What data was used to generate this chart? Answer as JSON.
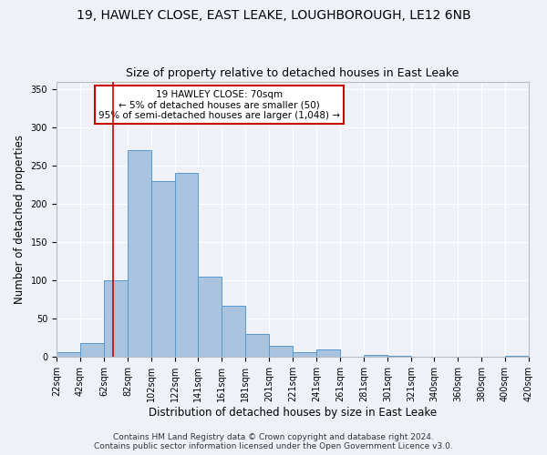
{
  "title1": "19, HAWLEY CLOSE, EAST LEAKE, LOUGHBOROUGH, LE12 6NB",
  "title2": "Size of property relative to detached houses in East Leake",
  "xlabel": "Distribution of detached houses by size in East Leake",
  "ylabel": "Number of detached properties",
  "footer1": "Contains HM Land Registry data © Crown copyright and database right 2024.",
  "footer2": "Contains public sector information licensed under the Open Government Licence v3.0.",
  "annotation_line1": "19 HAWLEY CLOSE: 70sqm",
  "annotation_line2": "← 5% of detached houses are smaller (50)",
  "annotation_line3": "95% of semi-detached houses are larger (1,048) →",
  "bar_left_edges": [
    22,
    42,
    62,
    82,
    102,
    122,
    141,
    161,
    181,
    201,
    221,
    241,
    261,
    281,
    301,
    321,
    340,
    360,
    380,
    400
  ],
  "bar_widths": [
    20,
    20,
    20,
    20,
    20,
    19,
    20,
    20,
    20,
    20,
    20,
    20,
    20,
    20,
    20,
    19,
    20,
    20,
    20,
    20
  ],
  "bar_heights": [
    6,
    18,
    100,
    270,
    230,
    241,
    105,
    67,
    30,
    15,
    6,
    10,
    1,
    3,
    2,
    0,
    0,
    0,
    0,
    2
  ],
  "bar_color": "#aac4e0",
  "bar_edge_color": "#5599cc",
  "red_line_x": 70,
  "red_line_color": "#cc0000",
  "annotation_box_color": "#cc0000",
  "annotation_box_fill": "#ffffff",
  "xlim": [
    22,
    420
  ],
  "ylim": [
    0,
    360
  ],
  "yticks": [
    0,
    50,
    100,
    150,
    200,
    250,
    300,
    350
  ],
  "xtick_labels": [
    "22sqm",
    "42sqm",
    "62sqm",
    "82sqm",
    "102sqm",
    "122sqm",
    "141sqm",
    "161sqm",
    "181sqm",
    "201sqm",
    "221sqm",
    "241sqm",
    "261sqm",
    "281sqm",
    "301sqm",
    "321sqm",
    "340sqm",
    "360sqm",
    "380sqm",
    "400sqm",
    "420sqm"
  ],
  "xtick_positions": [
    22,
    42,
    62,
    82,
    102,
    122,
    141,
    161,
    181,
    201,
    221,
    241,
    261,
    281,
    301,
    321,
    340,
    360,
    380,
    400,
    420
  ],
  "bg_color": "#eef2f8",
  "plot_bg_color": "#eef2f8",
  "grid_color": "#ffffff",
  "title_fontsize": 10,
  "subtitle_fontsize": 9,
  "axis_label_fontsize": 8.5,
  "tick_fontsize": 7,
  "footer_fontsize": 6.5,
  "annotation_fontsize": 7.5
}
